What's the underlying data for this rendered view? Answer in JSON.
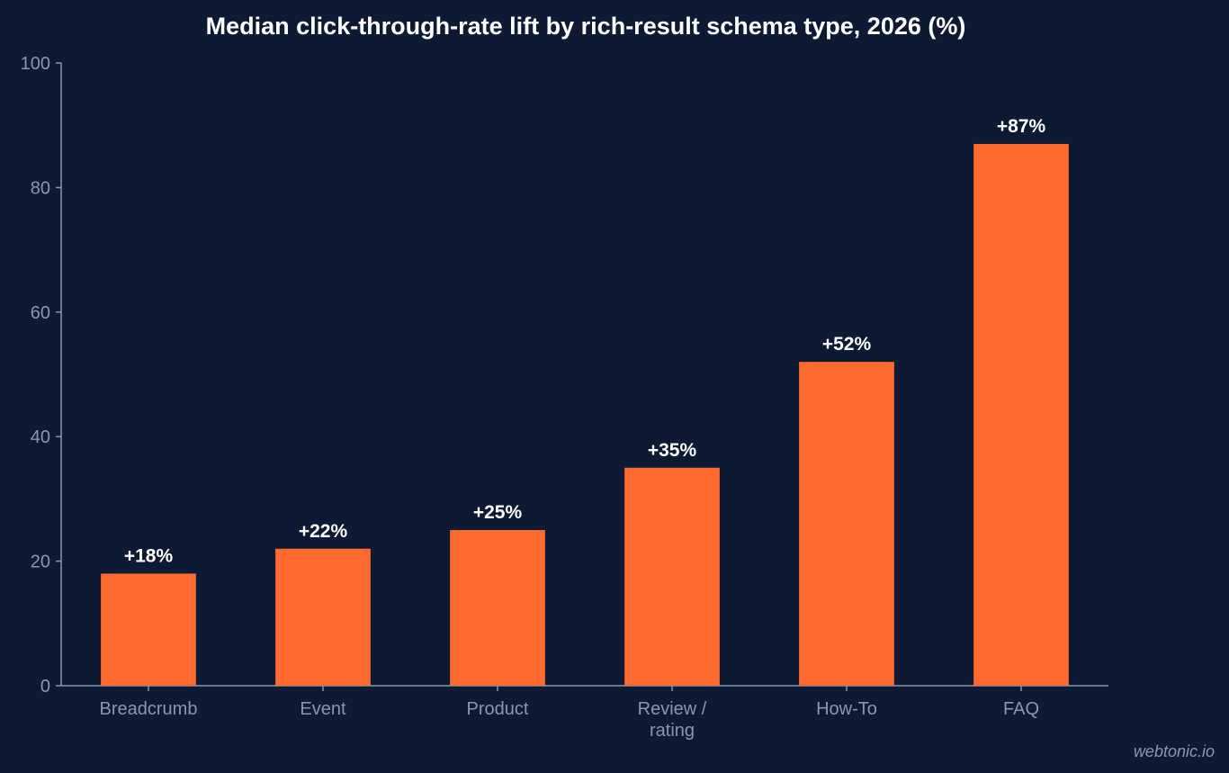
{
  "chart_data": {
    "type": "bar",
    "title": "Median click-through-rate lift by rich-result schema type, 2026 (%)",
    "xlabel": "",
    "ylabel": "",
    "categories": [
      [
        "Breadcrumb"
      ],
      [
        "Event"
      ],
      [
        "Product"
      ],
      [
        "Review /",
        "rating"
      ],
      [
        "How-To"
      ],
      [
        "FAQ"
      ]
    ],
    "values": [
      18,
      22,
      25,
      35,
      52,
      87
    ],
    "value_labels": [
      "+18%",
      "+22%",
      "+25%",
      "+35%",
      "+52%",
      "+87%"
    ],
    "ylim": [
      0,
      100
    ],
    "yticks": [
      0,
      20,
      40,
      60,
      80,
      100
    ],
    "grid": false,
    "legend": "none"
  },
  "colors": {
    "background": "#0c1b33",
    "bar": "#ff6b2f",
    "axis": "#8a97ad",
    "text": "#ffffff"
  },
  "watermark": "webtonic.io"
}
